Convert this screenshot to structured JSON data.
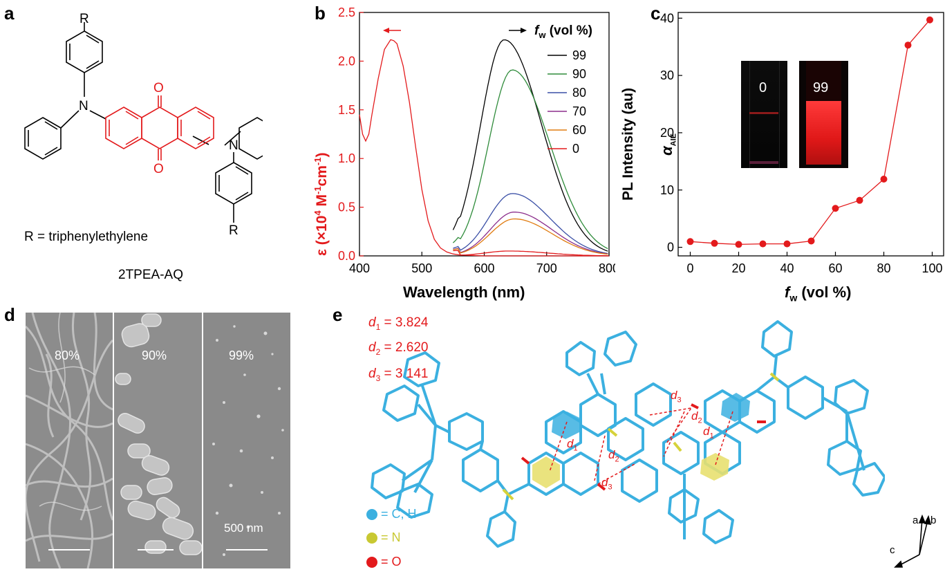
{
  "panels": {
    "a": {
      "label": "a",
      "r_top": "R",
      "r_bottom": "R",
      "o_top": "O",
      "o_bottom": "O",
      "n_left": "N",
      "n_right": "N",
      "r_definition": "R = triphenylethylene",
      "compound_name": "2TPEA-AQ"
    },
    "b": {
      "label": "b",
      "ylabel_prefix": "ε (×10",
      "ylabel_exp1": "4",
      "ylabel_mid": " M",
      "ylabel_exp2": "-1",
      "ylabel_mid2": "cm",
      "ylabel_exp3": "-1",
      "ylabel_suffix": ")",
      "ylabel": "ε (×10⁴ M⁻¹cm⁻¹)",
      "xlabel": "Wavelength (nm)",
      "legend_title_f": "f",
      "legend_title_sub": "w",
      "legend_title_rest": " (vol %)",
      "legend_title": "fw (vol %)",
      "arrow_left": "←",
      "arrow_right": "→",
      "colors": {
        "axis_left": "#e31a1c"
      }
    },
    "c": {
      "label": "c",
      "ylabel_alpha": "α",
      "ylabel_sub": "AIE",
      "ylabel_alpha_full": "αAIE",
      "ylabel_pl": "PL Intensity (au)",
      "xlabel_f": "f",
      "xlabel_sub": "w",
      "xlabel_rest": " (vol %)",
      "xlabel": "fw (vol %)",
      "inset_left_label": "0",
      "inset_right_label": "99"
    },
    "d": {
      "label": "d",
      "images": [
        "80%",
        "90%",
        "99%"
      ],
      "scale_bar": "500 nm"
    },
    "e": {
      "label": "e",
      "distances": [
        {
          "name": "d",
          "sub": "1",
          "value": "= 3.824"
        },
        {
          "name": "d",
          "sub": "2",
          "value": "= 2.620"
        },
        {
          "name": "d",
          "sub": "3",
          "value": "= 3.141"
        }
      ],
      "legend": [
        {
          "text": "= C, H",
          "color": "#3bb0e0"
        },
        {
          "text": "= N",
          "color": "#c8c832"
        },
        {
          "text": "= O",
          "color": "#e31a1c"
        }
      ],
      "axes": {
        "a": "a",
        "b": "b",
        "c": "c"
      },
      "marker_d1": "d1",
      "marker_d2": "d2",
      "marker_d3": "d3"
    }
  },
  "chart_data": [
    {
      "type": "line",
      "panel": "b",
      "xlabel": "Wavelength (nm)",
      "ylabel": "ε (×10⁴ M⁻¹cm⁻¹)",
      "xlim": [
        400,
        800
      ],
      "ylim": [
        0,
        2.5
      ],
      "xticks": [
        400,
        500,
        600,
        700,
        800
      ],
      "yticks": [
        0.0,
        0.5,
        1.0,
        1.5,
        2.0,
        2.5
      ],
      "absorption": {
        "color": "#e31a1c",
        "x": [
          400,
          405,
          410,
          415,
          420,
          430,
          440,
          450,
          455,
          460,
          470,
          480,
          490,
          500,
          510,
          520,
          530,
          540,
          550,
          560,
          600,
          700,
          800
        ],
        "y": [
          1.45,
          1.25,
          1.18,
          1.25,
          1.45,
          1.82,
          2.12,
          2.22,
          2.21,
          2.18,
          1.95,
          1.58,
          1.12,
          0.68,
          0.36,
          0.17,
          0.08,
          0.04,
          0.02,
          0.01,
          0.0,
          0.0,
          0.0
        ]
      },
      "series": [
        {
          "name": "99",
          "color": "#000000",
          "peak_x": 632,
          "peak_y": 2.22
        },
        {
          "name": "90",
          "color": "#2e8b3a",
          "peak_x": 645,
          "peak_y": 1.91
        },
        {
          "name": "80",
          "color": "#3a4fa6",
          "peak_x": 645,
          "peak_y": 0.64
        },
        {
          "name": "70",
          "color": "#8b2d8b",
          "peak_x": 648,
          "peak_y": 0.45
        },
        {
          "name": "60",
          "color": "#e07b10",
          "peak_x": 648,
          "peak_y": 0.38
        },
        {
          "name": "0",
          "color": "#e31a1c",
          "peak_x": 640,
          "peak_y": 0.05
        }
      ]
    },
    {
      "type": "line",
      "panel": "c",
      "xlabel": "fw (vol %)",
      "ylabel": "αAIE",
      "xlim": [
        -5,
        105
      ],
      "ylim": [
        -1.5,
        41
      ],
      "xticks": [
        0,
        20,
        40,
        60,
        80,
        100
      ],
      "yticks": [
        0,
        10,
        20,
        30,
        40
      ],
      "color": "#e31a1c",
      "x": [
        0,
        10,
        20,
        30,
        40,
        50,
        60,
        70,
        80,
        90,
        99
      ],
      "y": [
        1.0,
        0.7,
        0.5,
        0.6,
        0.6,
        1.1,
        6.8,
        8.2,
        11.9,
        35.3,
        39.7
      ]
    }
  ]
}
